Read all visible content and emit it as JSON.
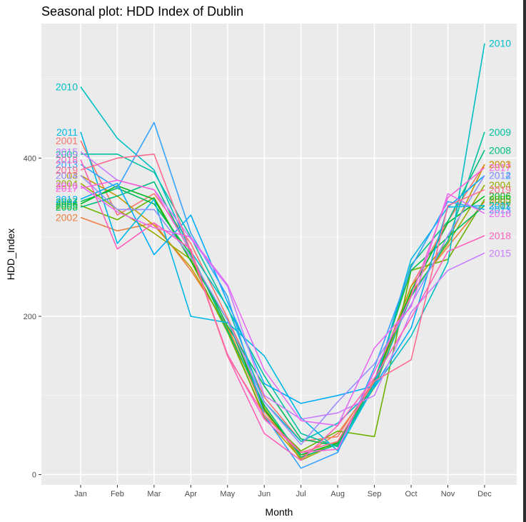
{
  "chart_data": {
    "type": "line",
    "title": "Seasonal plot: HDD Index of Dublin",
    "xlabel": "Month",
    "ylabel": "HDD_Index",
    "categories": [
      "Jan",
      "Feb",
      "Mar",
      "Apr",
      "May",
      "Jun",
      "Jul",
      "Aug",
      "Sep",
      "Oct",
      "Nov",
      "Dec"
    ],
    "yticks": [
      0,
      200,
      400
    ],
    "ylim": [
      -13,
      570
    ],
    "grid": true,
    "series": [
      {
        "name": "2001",
        "color": "#F8766D",
        "start_label": "2001",
        "end_label": "2001",
        "values": [
          422,
          328,
          355,
          292,
          198,
          98,
          42,
          48,
          120,
          238,
          320,
          392
        ]
      },
      {
        "name": "2002",
        "color": "#EE8044",
        "start_label": "2002",
        "end_label": "2002",
        "values": [
          325,
          308,
          318,
          258,
          188,
          80,
          22,
          52,
          115,
          230,
          288,
          345
        ]
      },
      {
        "name": "2003",
        "color": "#C49A00",
        "start_label": "2003",
        "end_label": "2003",
        "values": [
          378,
          352,
          315,
          262,
          185,
          72,
          20,
          42,
          118,
          238,
          295,
          392
        ]
      },
      {
        "name": "2004",
        "color": "#99A800",
        "start_label": "2004",
        "end_label": "2004",
        "values": [
          368,
          335,
          305,
          272,
          195,
          85,
          18,
          40,
          110,
          228,
          292,
          366
        ]
      },
      {
        "name": "2005",
        "color": "#6BB100",
        "start_label": "2005",
        "end_label": "2005",
        "values": [
          340,
          322,
          350,
          270,
          180,
          75,
          30,
          55,
          48,
          258,
          272,
          348
        ]
      },
      {
        "name": "2006",
        "color": "#00B81F",
        "start_label": "2006",
        "end_label": "2006",
        "values": [
          342,
          365,
          348,
          270,
          195,
          82,
          25,
          40,
          118,
          232,
          318,
          352
        ]
      },
      {
        "name": "2007",
        "color": "#00BC56",
        "start_label": "2007",
        "end_label": "2007",
        "values": [
          345,
          362,
          342,
          278,
          188,
          112,
          45,
          36,
          118,
          258,
          300,
          340
        ]
      },
      {
        "name": "2008",
        "color": "#00BF7D",
        "start_label": "2008",
        "end_label": "2008",
        "values": [
          338,
          352,
          370,
          280,
          182,
          88,
          22,
          38,
          115,
          265,
          320,
          410
        ]
      },
      {
        "name": "2009",
        "color": "#00C19F",
        "start_label": "2009",
        "end_label": "2009",
        "values": [
          405,
          405,
          382,
          300,
          210,
          125,
          52,
          35,
          112,
          225,
          295,
          433
        ]
      },
      {
        "name": "2010",
        "color": "#00BFC4",
        "start_label": "2010",
        "end_label": "2010",
        "values": [
          490,
          425,
          385,
          282,
          212,
          92,
          42,
          65,
          110,
          175,
          268,
          545
        ]
      },
      {
        "name": "2011",
        "color": "#00B8E5",
        "start_label": "2011",
        "end_label": "2011",
        "values": [
          433,
          292,
          348,
          200,
          192,
          150,
          72,
          30,
          112,
          272,
          338,
          340
        ]
      },
      {
        "name": "2012",
        "color": "#00ACFC",
        "start_label": "2012",
        "end_label": "2012",
        "values": [
          348,
          368,
          278,
          328,
          218,
          115,
          90,
          100,
          112,
          185,
          338,
          378
        ]
      },
      {
        "name": "2013",
        "color": "#35A2FF",
        "start_label": "2013",
        "end_label": "2013",
        "values": [
          392,
          362,
          445,
          305,
          225,
          75,
          8,
          28,
          135,
          262,
          345,
          335
        ]
      },
      {
        "name": "2014",
        "color": "#9590FF",
        "start_label": "2014",
        "end_label": "2014",
        "values": [
          378,
          335,
          335,
          275,
          195,
          92,
          38,
          92,
          140,
          215,
          302,
          378
        ]
      },
      {
        "name": "2015",
        "color": "#C77CFF",
        "start_label": "2015",
        "end_label": "2015",
        "values": [
          408,
          372,
          360,
          298,
          238,
          100,
          70,
          78,
          100,
          205,
          258,
          280
        ]
      },
      {
        "name": "2016",
        "color": "#E76BF3",
        "start_label": "2016",
        "end_label": "2016",
        "values": [
          365,
          332,
          312,
          300,
          240,
          132,
          68,
          62,
          160,
          212,
          355,
          330
        ]
      },
      {
        "name": "2017",
        "color": "#FA62DB",
        "start_label": "2017",
        "end_label": "2017",
        "values": [
          362,
          372,
          360,
          282,
          152,
          70,
          28,
          32,
          130,
          225,
          350,
          388
        ]
      },
      {
        "name": "2018",
        "color": "#FF62BC",
        "start_label": "2018",
        "end_label": "2018",
        "values": [
          398,
          285,
          318,
          285,
          150,
          52,
          18,
          62,
          122,
          198,
          282,
          302
        ]
      },
      {
        "name": "2019",
        "color": "#FF6C91",
        "start_label": "2019",
        "end_label": "2019",
        "values": [
          385,
          400,
          405,
          282,
          150,
          75,
          28,
          42,
          118,
          145,
          340,
          360
        ]
      }
    ]
  }
}
